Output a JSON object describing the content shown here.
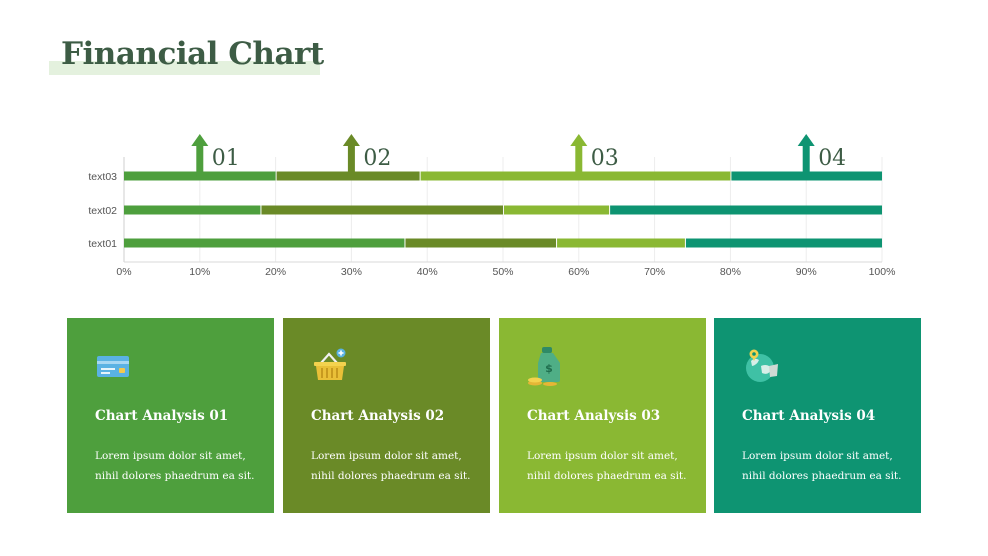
{
  "title": "Financial Chart",
  "colors": [
    "#4e9f3d",
    "#6a8a27",
    "#8ab833",
    "#0e9472"
  ],
  "chart_data": {
    "type": "bar",
    "orientation": "horizontal",
    "stacked": true,
    "categories": [
      "text03",
      "text02",
      "text01"
    ],
    "series": [
      {
        "values": [
          20,
          18,
          37
        ]
      },
      {
        "values": [
          19,
          32,
          20
        ]
      },
      {
        "values": [
          41,
          14,
          17
        ]
      },
      {
        "values": [
          20,
          36,
          26
        ]
      }
    ],
    "xlim": [
      0,
      100
    ],
    "xticks": [
      "0%",
      "10%",
      "20%",
      "30%",
      "40%",
      "50%",
      "60%",
      "70%",
      "80%",
      "90%",
      "100%"
    ],
    "grid": true,
    "markers": [
      {
        "label": "01",
        "x": 10
      },
      {
        "label": "02",
        "x": 30
      },
      {
        "label": "03",
        "x": 60
      },
      {
        "label": "04",
        "x": 90
      }
    ]
  },
  "cards": [
    {
      "title": "Chart Analysis 01",
      "text": "Lorem ipsum dolor sit amet, nihil dolores phaedrum ea sit.",
      "icon": "credit-card-icon",
      "color": "#4e9f3d"
    },
    {
      "title": "Chart Analysis 02",
      "text": "Lorem ipsum dolor sit amet, nihil dolores phaedrum ea sit.",
      "icon": "shopping-basket-icon",
      "color": "#6a8a27"
    },
    {
      "title": "Chart Analysis 03",
      "text": "Lorem ipsum dolor sit amet, nihil dolores phaedrum ea sit.",
      "icon": "money-bag-icon",
      "color": "#8ab833"
    },
    {
      "title": "Chart Analysis 04",
      "text": "Lorem ipsum dolor sit amet, nihil dolores phaedrum ea sit.",
      "icon": "globe-icon",
      "color": "#0e9472"
    }
  ]
}
